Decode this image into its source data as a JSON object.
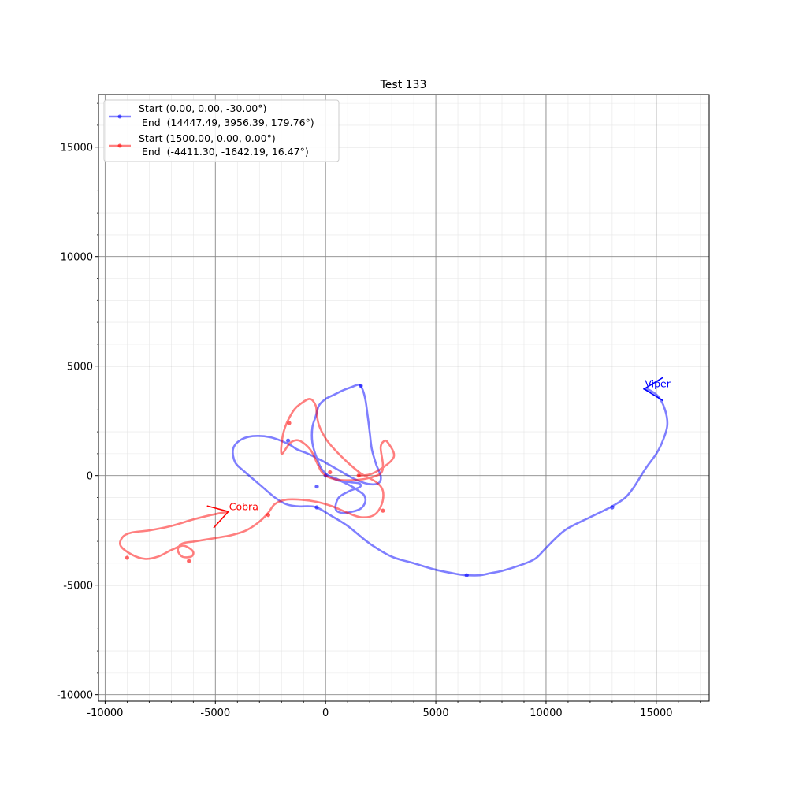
{
  "chart_data": {
    "type": "line",
    "title": "Test 133",
    "xlabel": "",
    "ylabel": "",
    "xlim": [
      -10300,
      17400
    ],
    "ylim": [
      -10300,
      17400
    ],
    "x_ticks": [
      -10000,
      -5000,
      0,
      5000,
      10000,
      15000
    ],
    "y_ticks": [
      -10000,
      -5000,
      0,
      5000,
      10000,
      15000
    ],
    "grid": true,
    "legend_position": "upper-left",
    "series": [
      {
        "label_line1": "Start (0.00, 0.00, -30.00°)",
        "label_line2": " End  (14447.49, 3956.39, 179.76°)",
        "color": "#0000ff",
        "x": [
          0,
          400,
          800,
          1200,
          1500,
          1750,
          1800,
          1600,
          1200,
          700,
          450,
          600,
          1100,
          1500,
          1600,
          1500,
          1100,
          500,
          -100,
          -400,
          -600,
          -600,
          -450,
          -300,
          0,
          400,
          800,
          1200,
          1500,
          1650,
          1800,
          1900,
          2000,
          2100,
          2300,
          2500,
          2450,
          2200,
          1800,
          1200,
          500,
          -200,
          -800,
          -1300,
          -1700,
          -2500,
          -3300,
          -3900,
          -4200,
          -4100,
          -3700,
          -3000,
          -2300,
          -1800,
          -1300,
          -800,
          -400,
          200,
          1000,
          2000,
          3000,
          4000,
          5000,
          6000,
          6400,
          7000,
          7500,
          8000,
          8800,
          9500,
          10000,
          10500,
          11000,
          12000,
          13000,
          13600,
          14000,
          14500,
          15000,
          15300,
          15500,
          15400,
          15100,
          14700,
          14447
        ],
        "y": [
          0,
          -100,
          -300,
          -500,
          -700,
          -900,
          -1200,
          -1500,
          -1650,
          -1700,
          -1500,
          -1000,
          -700,
          -550,
          -450,
          -350,
          -300,
          -200,
          200,
          800,
          1500,
          2200,
          2700,
          3200,
          3500,
          3700,
          3900,
          4050,
          4150,
          4000,
          3500,
          2800,
          2000,
          1200,
          500,
          0,
          -300,
          -400,
          -350,
          -100,
          300,
          700,
          1000,
          1200,
          1450,
          1750,
          1800,
          1600,
          1200,
          600,
          200,
          -400,
          -1000,
          -1300,
          -1400,
          -1400,
          -1450,
          -1800,
          -2300,
          -3100,
          -3700,
          -4000,
          -4300,
          -4500,
          -4550,
          -4550,
          -4450,
          -4350,
          -4100,
          -3800,
          -3300,
          -2800,
          -2400,
          -1900,
          -1400,
          -1000,
          -500,
          300,
          1000,
          1600,
          2300,
          3000,
          3600,
          3900,
          3956
        ],
        "markers_x": [
          0,
          -400,
          1600,
          -1700,
          -400,
          6400,
          13000
        ],
        "markers_y": [
          0,
          -500,
          4100,
          1600,
          -1450,
          -4550,
          -1450
        ]
      },
      {
        "label_line1": "Start (1500.00, 0.00, 0.00°)",
        "label_line2": " End  (-4411.30, -1642.19, 16.47°)",
        "color": "#ff0000",
        "x": [
          1500,
          2000,
          2500,
          3000,
          3100,
          2900,
          2700,
          2500,
          2600,
          2500,
          2000,
          1400,
          600,
          200,
          0,
          -200,
          -400,
          -700,
          -1200,
          -1600,
          -2000,
          -1900,
          -1500,
          -1100,
          -700,
          -450,
          -400,
          -300,
          0,
          400,
          1000,
          1600,
          2300,
          2600,
          2550,
          2200,
          1600,
          1000,
          300,
          -400,
          -1100,
          -1800,
          -2300,
          -2600,
          -3000,
          -3600,
          -4200,
          -4700,
          -5300,
          -5900,
          -6500,
          -6700,
          -6500,
          -6100,
          -6000,
          -6200,
          -6500,
          -7000,
          -7600,
          -8200,
          -8800,
          -9300,
          -9200,
          -8800,
          -8000,
          -7000,
          -6000,
          -5200,
          -4411
        ],
        "y": [
          0,
          50,
          300,
          700,
          1000,
          1400,
          1600,
          1300,
          500,
          100,
          -100,
          -200,
          -200,
          -100,
          0,
          200,
          600,
          1200,
          1600,
          1500,
          1000,
          2000,
          2900,
          3300,
          3500,
          3200,
          2800,
          2300,
          1700,
          1200,
          600,
          100,
          -300,
          -700,
          -1300,
          -1800,
          -1900,
          -1700,
          -1400,
          -1200,
          -1100,
          -1100,
          -1300,
          -1700,
          -2100,
          -2500,
          -2700,
          -2800,
          -2900,
          -3000,
          -3100,
          -3400,
          -3700,
          -3700,
          -3500,
          -3300,
          -3200,
          -3400,
          -3700,
          -3800,
          -3600,
          -3200,
          -2800,
          -2600,
          -2500,
          -2300,
          -2000,
          -1800,
          -1642
        ],
        "markers_x": [
          1500,
          200,
          -1650,
          2600,
          -2600,
          -6200,
          -9000
        ],
        "markers_y": [
          0,
          150,
          2400,
          -1600,
          -1800,
          -3900,
          -3750
        ]
      }
    ],
    "annotations": [
      {
        "text": "Viper",
        "x": 14447,
        "y": 3956,
        "color": "#0000ff"
      },
      {
        "text": "Cobra",
        "x": -4411,
        "y": -1642,
        "color": "#ff0000"
      }
    ]
  }
}
